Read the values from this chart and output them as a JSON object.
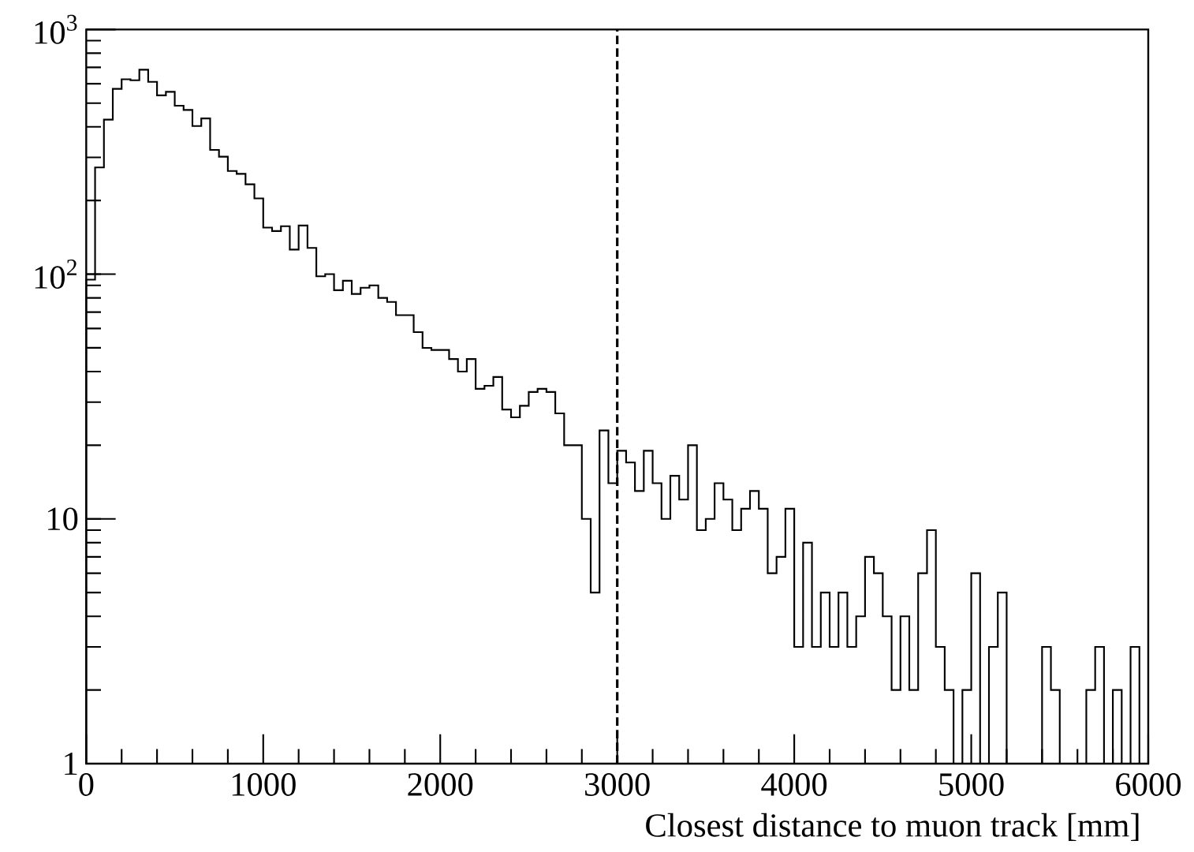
{
  "chart_data": {
    "type": "histogram",
    "xlabel": "Closest distance to muon track [mm]",
    "bins": [
      0,
      50,
      100,
      150,
      200,
      250,
      300,
      350,
      400,
      450,
      500,
      550,
      600,
      650,
      700,
      750,
      800,
      850,
      900,
      950,
      1000,
      1050,
      1100,
      1150,
      1200,
      1250,
      1300,
      1350,
      1400,
      1450,
      1500,
      1550,
      1600,
      1650,
      1700,
      1750,
      1800,
      1850,
      1900,
      1950,
      2000,
      2050,
      2100,
      2150,
      2200,
      2250,
      2300,
      2350,
      2400,
      2450,
      2500,
      2550,
      2600,
      2650,
      2700,
      2750,
      2800,
      2850,
      2900,
      2950,
      3000,
      3050,
      3100,
      3150,
      3200,
      3250,
      3300,
      3350,
      3400,
      3450,
      3500,
      3550,
      3600,
      3650,
      3700,
      3750,
      3800,
      3850,
      3900,
      3950,
      4000,
      4050,
      4100,
      4150,
      4200,
      4250,
      4300,
      4350,
      4400,
      4450,
      4500,
      4550,
      4600,
      4650,
      4700,
      4750,
      4800,
      4850,
      4900,
      4950,
      5000,
      5050,
      5100,
      5150,
      5200,
      5250,
      5300,
      5350,
      5400,
      5450,
      5500,
      5550,
      5600,
      5650,
      5700,
      5750,
      5800,
      5850,
      5900,
      5950,
      6000
    ],
    "values": [
      95,
      273,
      428,
      572,
      626,
      620,
      685,
      611,
      538,
      556,
      488,
      469,
      403,
      433,
      322,
      302,
      264,
      257,
      233,
      204,
      155,
      150,
      157,
      126,
      158,
      128,
      98,
      100,
      86,
      94,
      83,
      88,
      90,
      80,
      77,
      68,
      68,
      58,
      50,
      49,
      49,
      45,
      40,
      45,
      34,
      35,
      38,
      28,
      26,
      29,
      33,
      34,
      33,
      27,
      20,
      20,
      10,
      5,
      23,
      14,
      19,
      17,
      13,
      19,
      14,
      10,
      15,
      12,
      20,
      9,
      10,
      14,
      12,
      9,
      11,
      13,
      11,
      6,
      7,
      11,
      3,
      8,
      3,
      5,
      3,
      5,
      3,
      4,
      7,
      6,
      4,
      2,
      4,
      2,
      6,
      9,
      3,
      2,
      1,
      2,
      6,
      1,
      3,
      5,
      1,
      1,
      1,
      1,
      3,
      2,
      1,
      1,
      1,
      2,
      3,
      1,
      2,
      1,
      3,
      1
    ],
    "color": "#000000",
    "log": true,
    "xlim": [
      0,
      6000
    ],
    "ylim": [
      1,
      1000
    ],
    "xticks": [
      0,
      1000,
      2000,
      3000,
      4000,
      5000,
      6000
    ],
    "yticks": [
      {
        "value": 1,
        "label": "1"
      },
      {
        "value": 10,
        "label": "10"
      },
      {
        "value": 100,
        "label": "10$^{2}$"
      },
      {
        "value": 1000,
        "label": "10$^{3}$"
      }
    ],
    "ref_lines": [
      {
        "axis": "x",
        "value": 3000,
        "color": "#000000",
        "line_style": "dashed"
      }
    ]
  }
}
